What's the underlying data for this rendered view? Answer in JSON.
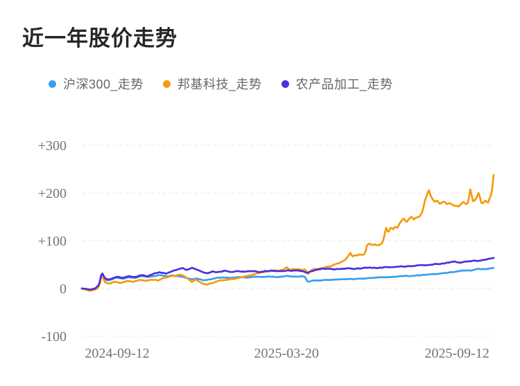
{
  "title": "近一年股价走势",
  "colors": {
    "title_text": "#262626",
    "legend_text": "#666666",
    "axis_text": "#737373",
    "gridline": "#e8e8e8",
    "background": "#ffffff"
  },
  "chart_data": {
    "type": "line",
    "title": "近一年股价走势",
    "legend_position": "top-left",
    "grid": "horizontal dashed lines",
    "x_axis": {
      "range": [
        "2024-09-12",
        "2025-09-12"
      ],
      "tick_labels": [
        "2024-09-12",
        "2025-03-20",
        "2025-09-12"
      ]
    },
    "y_axis": {
      "tick_labels": [
        "+300",
        "+200",
        "+100",
        "0",
        "-100"
      ],
      "tick_values": [
        300,
        200,
        100,
        0,
        -100
      ],
      "lim": [
        -100,
        300
      ],
      "unit": "percent change"
    },
    "anchors_format": "[fraction of date range 2024-09-12 to 2025-09-12, percent change vs start]",
    "series": [
      {
        "id": "csi300",
        "name": "沪深300_走势",
        "color": "#36a0f0",
        "end_value": 43,
        "anchors": [
          [
            0,
            0
          ],
          [
            0.01,
            -2
          ],
          [
            0.02,
            -4
          ],
          [
            0.032,
            -2
          ],
          [
            0.042,
            5
          ],
          [
            0.047,
            28
          ],
          [
            0.05,
            31
          ],
          [
            0.054,
            21
          ],
          [
            0.062,
            16
          ],
          [
            0.072,
            19
          ],
          [
            0.085,
            23
          ],
          [
            0.1,
            20
          ],
          [
            0.115,
            24
          ],
          [
            0.13,
            22
          ],
          [
            0.145,
            26
          ],
          [
            0.16,
            24
          ],
          [
            0.175,
            26
          ],
          [
            0.19,
            28
          ],
          [
            0.205,
            25
          ],
          [
            0.22,
            27
          ],
          [
            0.235,
            26
          ],
          [
            0.25,
            23
          ],
          [
            0.265,
            19
          ],
          [
            0.28,
            21
          ],
          [
            0.295,
            17
          ],
          [
            0.31,
            19
          ],
          [
            0.325,
            22
          ],
          [
            0.34,
            23
          ],
          [
            0.36,
            22
          ],
          [
            0.38,
            24
          ],
          [
            0.4,
            23
          ],
          [
            0.42,
            25
          ],
          [
            0.44,
            24
          ],
          [
            0.46,
            25
          ],
          [
            0.48,
            24
          ],
          [
            0.5,
            26
          ],
          [
            0.52,
            25
          ],
          [
            0.535,
            26
          ],
          [
            0.543,
            24
          ],
          [
            0.547,
            14
          ],
          [
            0.56,
            16
          ],
          [
            0.58,
            17
          ],
          [
            0.6,
            18
          ],
          [
            0.63,
            19
          ],
          [
            0.66,
            20
          ],
          [
            0.69,
            21
          ],
          [
            0.72,
            23
          ],
          [
            0.75,
            24
          ],
          [
            0.78,
            26
          ],
          [
            0.81,
            27
          ],
          [
            0.84,
            29
          ],
          [
            0.87,
            31
          ],
          [
            0.895,
            34
          ],
          [
            0.915,
            36
          ],
          [
            0.93,
            38
          ],
          [
            0.945,
            37
          ],
          [
            0.96,
            41
          ],
          [
            0.975,
            40
          ],
          [
            0.99,
            42
          ],
          [
            1,
            43
          ]
        ]
      },
      {
        "id": "bangji-tech",
        "name": "邦基科技_走势",
        "color": "#f59a0b",
        "end_value": 238,
        "anchors": [
          [
            0,
            0
          ],
          [
            0.01,
            -3
          ],
          [
            0.02,
            -6
          ],
          [
            0.032,
            -3
          ],
          [
            0.042,
            3
          ],
          [
            0.047,
            24
          ],
          [
            0.05,
            27
          ],
          [
            0.056,
            13
          ],
          [
            0.065,
            10
          ],
          [
            0.08,
            14
          ],
          [
            0.095,
            12
          ],
          [
            0.11,
            16
          ],
          [
            0.125,
            14
          ],
          [
            0.14,
            18
          ],
          [
            0.155,
            16
          ],
          [
            0.17,
            19
          ],
          [
            0.185,
            17
          ],
          [
            0.2,
            22
          ],
          [
            0.215,
            25
          ],
          [
            0.23,
            27
          ],
          [
            0.243,
            29
          ],
          [
            0.252,
            24
          ],
          [
            0.26,
            18
          ],
          [
            0.268,
            13
          ],
          [
            0.278,
            19
          ],
          [
            0.29,
            11
          ],
          [
            0.305,
            8
          ],
          [
            0.32,
            12
          ],
          [
            0.335,
            17
          ],
          [
            0.35,
            18
          ],
          [
            0.365,
            20
          ],
          [
            0.38,
            22
          ],
          [
            0.395,
            25
          ],
          [
            0.41,
            28
          ],
          [
            0.425,
            31
          ],
          [
            0.44,
            34
          ],
          [
            0.452,
            36
          ],
          [
            0.465,
            38
          ],
          [
            0.478,
            37
          ],
          [
            0.49,
            40
          ],
          [
            0.498,
            45
          ],
          [
            0.504,
            39
          ],
          [
            0.512,
            41
          ],
          [
            0.52,
            40
          ],
          [
            0.53,
            41
          ],
          [
            0.537,
            39
          ],
          [
            0.543,
            40
          ],
          [
            0.549,
            30
          ],
          [
            0.554,
            36
          ],
          [
            0.56,
            40
          ],
          [
            0.57,
            41
          ],
          [
            0.58,
            42
          ],
          [
            0.59,
            44
          ],
          [
            0.6,
            46
          ],
          [
            0.61,
            49
          ],
          [
            0.62,
            52
          ],
          [
            0.63,
            55
          ],
          [
            0.64,
            60
          ],
          [
            0.648,
            68
          ],
          [
            0.652,
            74
          ],
          [
            0.657,
            67
          ],
          [
            0.663,
            70
          ],
          [
            0.668,
            68
          ],
          [
            0.673,
            71
          ],
          [
            0.684,
            70
          ],
          [
            0.688,
            74
          ],
          [
            0.692,
            88
          ],
          [
            0.697,
            93
          ],
          [
            0.703,
            92
          ],
          [
            0.71,
            93
          ],
          [
            0.716,
            91
          ],
          [
            0.722,
            92
          ],
          [
            0.728,
            93
          ],
          [
            0.733,
            104
          ],
          [
            0.739,
            126
          ],
          [
            0.744,
            118
          ],
          [
            0.75,
            129
          ],
          [
            0.755,
            122
          ],
          [
            0.761,
            132
          ],
          [
            0.767,
            126
          ],
          [
            0.774,
            140
          ],
          [
            0.782,
            148
          ],
          [
            0.788,
            139
          ],
          [
            0.794,
            145
          ],
          [
            0.8,
            150
          ],
          [
            0.806,
            144
          ],
          [
            0.812,
            149
          ],
          [
            0.82,
            150
          ],
          [
            0.827,
            161
          ],
          [
            0.834,
            186
          ],
          [
            0.843,
            206
          ],
          [
            0.849,
            193
          ],
          [
            0.855,
            182
          ],
          [
            0.862,
            186
          ],
          [
            0.87,
            179
          ],
          [
            0.878,
            183
          ],
          [
            0.886,
            176
          ],
          [
            0.893,
            180
          ],
          [
            0.9,
            174
          ],
          [
            0.908,
            171
          ],
          [
            0.916,
            172
          ],
          [
            0.922,
            176
          ],
          [
            0.927,
            181
          ],
          [
            0.934,
            174
          ],
          [
            0.938,
            182
          ],
          [
            0.943,
            208
          ],
          [
            0.948,
            190
          ],
          [
            0.951,
            181
          ],
          [
            0.958,
            189
          ],
          [
            0.963,
            201
          ],
          [
            0.968,
            186
          ],
          [
            0.971,
            175
          ],
          [
            0.976,
            181
          ],
          [
            0.98,
            186
          ],
          [
            0.986,
            178
          ],
          [
            0.991,
            192
          ],
          [
            0.995,
            196
          ],
          [
            1,
            238
          ]
        ]
      },
      {
        "id": "agri-processing",
        "name": "农产品加工_走势",
        "color": "#4b2fdb",
        "end_value": 64,
        "anchors": [
          [
            0,
            0
          ],
          [
            0.01,
            -1
          ],
          [
            0.02,
            -3
          ],
          [
            0.032,
            0
          ],
          [
            0.042,
            7
          ],
          [
            0.047,
            29
          ],
          [
            0.05,
            32
          ],
          [
            0.055,
            23
          ],
          [
            0.062,
            18
          ],
          [
            0.072,
            20
          ],
          [
            0.085,
            25
          ],
          [
            0.1,
            22
          ],
          [
            0.115,
            26
          ],
          [
            0.13,
            24
          ],
          [
            0.145,
            28
          ],
          [
            0.16,
            26
          ],
          [
            0.175,
            31
          ],
          [
            0.19,
            34
          ],
          [
            0.205,
            31
          ],
          [
            0.218,
            36
          ],
          [
            0.232,
            40
          ],
          [
            0.245,
            43
          ],
          [
            0.256,
            39
          ],
          [
            0.268,
            43
          ],
          [
            0.28,
            40
          ],
          [
            0.292,
            34
          ],
          [
            0.305,
            32
          ],
          [
            0.318,
            36
          ],
          [
            0.33,
            34
          ],
          [
            0.345,
            37
          ],
          [
            0.36,
            35
          ],
          [
            0.378,
            36
          ],
          [
            0.396,
            35
          ],
          [
            0.414,
            37
          ],
          [
            0.43,
            34
          ],
          [
            0.446,
            36
          ],
          [
            0.462,
            37
          ],
          [
            0.478,
            36
          ],
          [
            0.494,
            37
          ],
          [
            0.51,
            38
          ],
          [
            0.525,
            37
          ],
          [
            0.54,
            36
          ],
          [
            0.547,
            32
          ],
          [
            0.557,
            36
          ],
          [
            0.57,
            39
          ],
          [
            0.585,
            41
          ],
          [
            0.6,
            41
          ],
          [
            0.62,
            40
          ],
          [
            0.64,
            42
          ],
          [
            0.66,
            41
          ],
          [
            0.68,
            42
          ],
          [
            0.7,
            44
          ],
          [
            0.72,
            43
          ],
          [
            0.74,
            45
          ],
          [
            0.76,
            45
          ],
          [
            0.78,
            46
          ],
          [
            0.8,
            47
          ],
          [
            0.82,
            48
          ],
          [
            0.84,
            49
          ],
          [
            0.86,
            51
          ],
          [
            0.875,
            52
          ],
          [
            0.89,
            54
          ],
          [
            0.905,
            57
          ],
          [
            0.918,
            53
          ],
          [
            0.93,
            56
          ],
          [
            0.942,
            57
          ],
          [
            0.952,
            59
          ],
          [
            0.962,
            57
          ],
          [
            0.972,
            60
          ],
          [
            0.982,
            61
          ],
          [
            0.99,
            62
          ],
          [
            1,
            64
          ]
        ]
      }
    ]
  }
}
